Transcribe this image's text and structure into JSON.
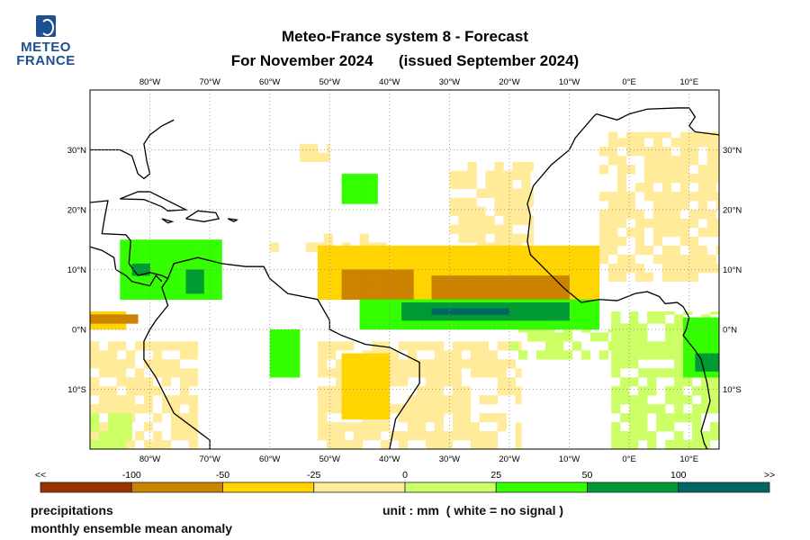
{
  "logo": {
    "line1": "METEO",
    "line2": "FRANCE"
  },
  "header": {
    "title_line1": "Meteo-France system 8  -  Forecast",
    "title_line2": "For November 2024      (issued September 2024)"
  },
  "chart_data": {
    "type": "heatmap",
    "title": "Meteo-France system 8 - Forecast, For November 2024 (issued September 2024)",
    "variable": "precipitations",
    "subtitle": "monthly ensemble mean anomaly",
    "unit_note": "unit : mm  ( white = no signal )",
    "lon_range": [
      -90,
      15
    ],
    "lat_range": [
      -20,
      40
    ],
    "lon_ticks": [
      "80°W",
      "70°W",
      "60°W",
      "50°W",
      "40°W",
      "30°W",
      "20°W",
      "10°W",
      "0°E",
      "10°E"
    ],
    "lon_tick_values": [
      -80,
      -70,
      -60,
      -50,
      -40,
      -30,
      -20,
      -10,
      0,
      10
    ],
    "lat_ticks": [
      "30°N",
      "20°N",
      "10°N",
      "0°N",
      "10°S"
    ],
    "lat_tick_values": [
      30,
      20,
      10,
      0,
      -10
    ],
    "legend": {
      "labels": [
        "<<",
        "-100",
        "-50",
        "-25",
        "0",
        "25",
        "50",
        "100",
        ">>"
      ],
      "colors": [
        "#993300",
        "#cc8400",
        "#ffd400",
        "#ffeb99",
        "#ccff66",
        "#33ff00",
        "#009933",
        "#006666"
      ]
    },
    "regions": [
      {
        "cls": 3,
        "lon": [
          -5,
          15
        ],
        "lat": [
          8,
          33
        ]
      },
      {
        "cls": 3,
        "lon": [
          -90,
          -72
        ],
        "lat": [
          -20,
          -2
        ]
      },
      {
        "cls": 3,
        "lon": [
          -52,
          -18
        ],
        "lat": [
          -20,
          -2
        ]
      },
      {
        "cls": 3,
        "lon": [
          -30,
          -16
        ],
        "lat": [
          10,
          28
        ]
      },
      {
        "cls": 3,
        "lon": [
          -60,
          -40
        ],
        "lat": [
          13,
          16
        ]
      },
      {
        "cls": 3,
        "lon": [
          -55,
          -50
        ],
        "lat": [
          28,
          31
        ]
      },
      {
        "cls": 4,
        "lon": [
          -20,
          0
        ],
        "lat": [
          -5,
          0
        ]
      },
      {
        "cls": 4,
        "lon": [
          -3,
          15
        ],
        "lat": [
          -20,
          3
        ]
      },
      {
        "cls": 4,
        "lon": [
          -90,
          -83
        ],
        "lat": [
          -20,
          -14
        ]
      },
      {
        "cls": 2,
        "lon": [
          -52,
          -5
        ],
        "lat": [
          5,
          14
        ]
      },
      {
        "cls": 2,
        "lon": [
          -48,
          -40
        ],
        "lat": [
          -15,
          -4
        ]
      },
      {
        "cls": 2,
        "lon": [
          -90,
          -84
        ],
        "lat": [
          0,
          3
        ]
      },
      {
        "cls": 1,
        "lon": [
          -48,
          -36
        ],
        "lat": [
          5,
          10
        ]
      },
      {
        "cls": 1,
        "lon": [
          -33,
          -10
        ],
        "lat": [
          5,
          9
        ]
      },
      {
        "cls": 1,
        "lon": [
          -90,
          -82
        ],
        "lat": [
          1,
          2.5
        ]
      },
      {
        "cls": 5,
        "lon": [
          -45,
          -5
        ],
        "lat": [
          0,
          5
        ]
      },
      {
        "cls": 5,
        "lon": [
          -85,
          -68
        ],
        "lat": [
          5,
          15
        ]
      },
      {
        "cls": 5,
        "lon": [
          -60,
          -55
        ],
        "lat": [
          -8,
          0
        ]
      },
      {
        "cls": 5,
        "lon": [
          9,
          15
        ],
        "lat": [
          -8,
          2
        ]
      },
      {
        "cls": 5,
        "lon": [
          -48,
          -42
        ],
        "lat": [
          21,
          26
        ]
      },
      {
        "cls": 6,
        "lon": [
          -38,
          -10
        ],
        "lat": [
          1.5,
          4.5
        ]
      },
      {
        "cls": 6,
        "lon": [
          -83,
          -80
        ],
        "lat": [
          9,
          11
        ]
      },
      {
        "cls": 6,
        "lon": [
          -74,
          -71
        ],
        "lat": [
          6,
          10
        ]
      },
      {
        "cls": 6,
        "lon": [
          11,
          15
        ],
        "lat": [
          -7,
          -4
        ]
      },
      {
        "cls": 7,
        "lon": [
          -33,
          -20
        ],
        "lat": [
          2.5,
          3.5
        ]
      }
    ]
  },
  "footer": {
    "label_left1": "precipitations",
    "label_left2": "monthly ensemble mean anomaly",
    "unit": "unit : mm  ( white = no signal )"
  }
}
